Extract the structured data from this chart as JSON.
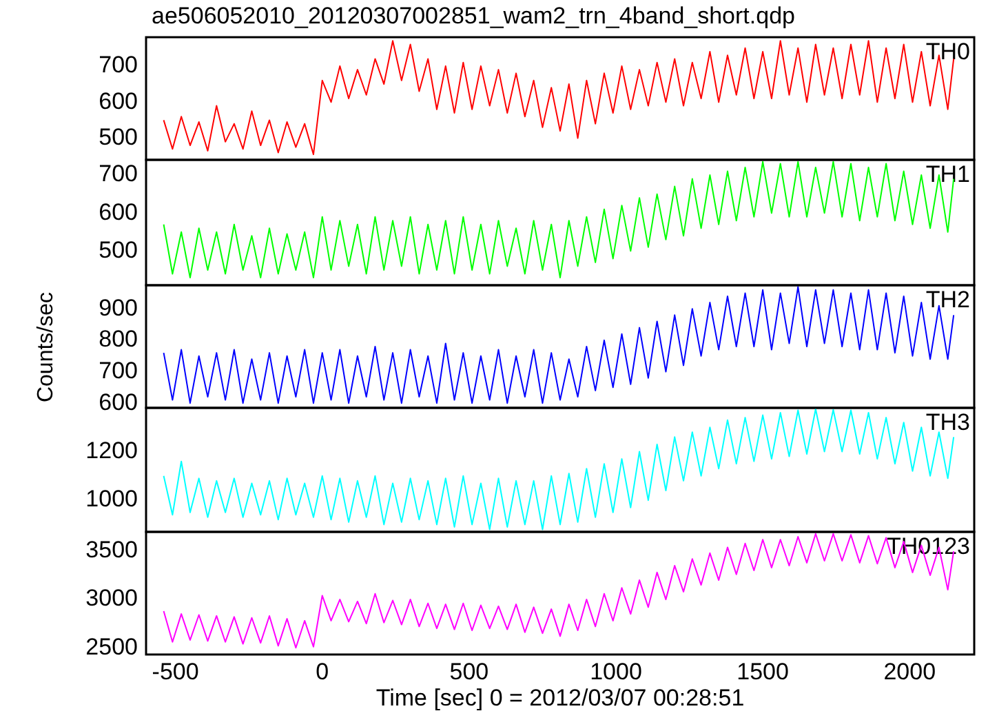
{
  "chart_data": [
    {
      "type": "line",
      "title": "ae506052010_20120307002851_wam2_trn_4band_short.qdp",
      "x": [
        -540,
        -510,
        -480,
        -450,
        -420,
        -390,
        -360,
        -330,
        -300,
        -270,
        -240,
        -210,
        -180,
        -150,
        -120,
        -90,
        -60,
        -30,
        0,
        30,
        60,
        90,
        120,
        150,
        180,
        210,
        240,
        270,
        300,
        330,
        360,
        390,
        420,
        450,
        480,
        510,
        540,
        570,
        600,
        630,
        660,
        690,
        720,
        750,
        780,
        810,
        840,
        870,
        900,
        930,
        960,
        990,
        1020,
        1050,
        1080,
        1110,
        1140,
        1170,
        1200,
        1230,
        1260,
        1290,
        1320,
        1350,
        1380,
        1410,
        1440,
        1470,
        1500,
        1530,
        1560,
        1590,
        1620,
        1650,
        1680,
        1710,
        1740,
        1770,
        1800,
        1830,
        1860,
        1890,
        1920,
        1950,
        1980,
        2010,
        2040,
        2070,
        2100,
        2130,
        2150
      ],
      "xlim": [
        -600,
        2220
      ],
      "xticks": [
        -500,
        0,
        500,
        1000,
        1500,
        2000
      ],
      "ylim": [
        440,
        780
      ],
      "yticks": [
        500,
        600,
        700
      ],
      "tick_labels": "y",
      "series": [
        {
          "name": "TH0",
          "color": "#ff0000",
          "values": [
            550,
            470,
            560,
            480,
            545,
            465,
            590,
            490,
            540,
            470,
            575,
            480,
            550,
            460,
            545,
            475,
            540,
            455,
            660,
            600,
            700,
            610,
            690,
            620,
            720,
            650,
            770,
            660,
            760,
            630,
            720,
            580,
            700,
            570,
            710,
            580,
            700,
            590,
            690,
            570,
            680,
            560,
            660,
            530,
            640,
            520,
            650,
            500,
            660,
            540,
            680,
            570,
            700,
            580,
            690,
            590,
            710,
            600,
            720,
            590,
            710,
            610,
            740,
            600,
            730,
            620,
            750,
            610,
            740,
            610,
            770,
            620,
            750,
            600,
            760,
            620,
            750,
            610,
            760,
            620,
            770,
            600,
            750,
            610,
            760,
            600,
            740,
            590,
            730,
            580,
            720
          ]
        }
      ]
    },
    {
      "type": "line",
      "x": [
        -540,
        -510,
        -480,
        -450,
        -420,
        -390,
        -360,
        -330,
        -300,
        -270,
        -240,
        -210,
        -180,
        -150,
        -120,
        -90,
        -60,
        -30,
        0,
        30,
        60,
        90,
        120,
        150,
        180,
        210,
        240,
        270,
        300,
        330,
        360,
        390,
        420,
        450,
        480,
        510,
        540,
        570,
        600,
        630,
        660,
        690,
        720,
        750,
        780,
        810,
        840,
        870,
        900,
        930,
        960,
        990,
        1020,
        1050,
        1080,
        1110,
        1140,
        1170,
        1200,
        1230,
        1260,
        1290,
        1320,
        1350,
        1380,
        1410,
        1440,
        1470,
        1500,
        1530,
        1560,
        1590,
        1620,
        1650,
        1680,
        1710,
        1740,
        1770,
        1800,
        1830,
        1860,
        1890,
        1920,
        1950,
        1980,
        2010,
        2040,
        2070,
        2100,
        2130,
        2150
      ],
      "xlim": [
        -600,
        2220
      ],
      "xticks": [
        -500,
        0,
        500,
        1000,
        1500,
        2000
      ],
      "ylim": [
        410,
        740
      ],
      "yticks": [
        500,
        600,
        700
      ],
      "tick_labels": "y",
      "series": [
        {
          "name": "TH1",
          "color": "#00ff00",
          "values": [
            570,
            440,
            550,
            430,
            560,
            450,
            550,
            440,
            570,
            450,
            540,
            430,
            560,
            440,
            545,
            450,
            550,
            430,
            590,
            450,
            580,
            460,
            570,
            440,
            590,
            450,
            580,
            460,
            590,
            440,
            570,
            450,
            580,
            440,
            590,
            450,
            570,
            440,
            580,
            460,
            560,
            440,
            580,
            450,
            570,
            430,
            580,
            460,
            590,
            470,
            610,
            480,
            620,
            500,
            640,
            510,
            650,
            530,
            670,
            540,
            690,
            560,
            700,
            570,
            710,
            580,
            720,
            590,
            735,
            600,
            730,
            590,
            735,
            590,
            720,
            600,
            735,
            590,
            730,
            580,
            720,
            590,
            730,
            580,
            710,
            570,
            700,
            560,
            700,
            550,
            690
          ]
        }
      ]
    },
    {
      "type": "line",
      "ylabel": "Counts/sec",
      "x": [
        -540,
        -510,
        -480,
        -450,
        -420,
        -390,
        -360,
        -330,
        -300,
        -270,
        -240,
        -210,
        -180,
        -150,
        -120,
        -90,
        -60,
        -30,
        0,
        30,
        60,
        90,
        120,
        150,
        180,
        210,
        240,
        270,
        300,
        330,
        360,
        390,
        420,
        450,
        480,
        510,
        540,
        570,
        600,
        630,
        660,
        690,
        720,
        750,
        780,
        810,
        840,
        870,
        900,
        930,
        960,
        990,
        1020,
        1050,
        1080,
        1110,
        1140,
        1170,
        1200,
        1230,
        1260,
        1290,
        1320,
        1350,
        1380,
        1410,
        1440,
        1470,
        1500,
        1530,
        1560,
        1590,
        1620,
        1650,
        1680,
        1710,
        1740,
        1770,
        1800,
        1830,
        1860,
        1890,
        1920,
        1950,
        1980,
        2010,
        2040,
        2070,
        2100,
        2130,
        2150
      ],
      "xlim": [
        -600,
        2220
      ],
      "xticks": [
        -500,
        0,
        500,
        1000,
        1500,
        2000
      ],
      "ylim": [
        585,
        975
      ],
      "yticks": [
        600,
        700,
        800,
        900
      ],
      "tick_labels": "y",
      "series": [
        {
          "name": "TH2",
          "color": "#0000ff",
          "values": [
            760,
            610,
            770,
            600,
            750,
            620,
            760,
            610,
            770,
            600,
            740,
            610,
            760,
            600,
            750,
            620,
            770,
            600,
            760,
            610,
            770,
            600,
            750,
            620,
            780,
            610,
            760,
            600,
            770,
            620,
            750,
            600,
            790,
            610,
            760,
            600,
            750,
            610,
            770,
            600,
            750,
            620,
            770,
            600,
            760,
            610,
            740,
            620,
            780,
            640,
            800,
            650,
            820,
            660,
            840,
            680,
            860,
            700,
            880,
            720,
            900,
            750,
            920,
            770,
            940,
            780,
            950,
            780,
            960,
            770,
            950,
            790,
            970,
            780,
            960,
            790,
            960,
            780,
            950,
            770,
            960,
            770,
            950,
            760,
            940,
            750,
            920,
            740,
            910,
            740,
            880
          ]
        }
      ]
    },
    {
      "type": "line",
      "x": [
        -540,
        -510,
        -480,
        -450,
        -420,
        -390,
        -360,
        -330,
        -300,
        -270,
        -240,
        -210,
        -180,
        -150,
        -120,
        -90,
        -60,
        -30,
        0,
        30,
        60,
        90,
        120,
        150,
        180,
        210,
        240,
        270,
        300,
        330,
        360,
        390,
        420,
        450,
        480,
        510,
        540,
        570,
        600,
        630,
        660,
        690,
        720,
        750,
        780,
        810,
        840,
        870,
        900,
        930,
        960,
        990,
        1020,
        1050,
        1080,
        1110,
        1140,
        1170,
        1200,
        1230,
        1260,
        1290,
        1320,
        1350,
        1380,
        1410,
        1440,
        1470,
        1500,
        1530,
        1560,
        1590,
        1620,
        1650,
        1680,
        1710,
        1740,
        1770,
        1800,
        1830,
        1860,
        1890,
        1920,
        1950,
        1980,
        2010,
        2040,
        2070,
        2100,
        2130,
        2150
      ],
      "xlim": [
        -600,
        2220
      ],
      "xticks": [
        -500,
        0,
        500,
        1000,
        1500,
        2000
      ],
      "ylim": [
        870,
        1380
      ],
      "yticks": [
        1000,
        1200
      ],
      "tick_labels": "y",
      "series": [
        {
          "name": "TH3",
          "color": "#00ffff",
          "values": [
            1100,
            940,
            1160,
            950,
            1090,
            930,
            1080,
            950,
            1090,
            930,
            1070,
            940,
            1080,
            920,
            1090,
            940,
            1070,
            930,
            1100,
            920,
            1090,
            910,
            1080,
            930,
            1100,
            900,
            1070,
            910,
            1090,
            920,
            1080,
            900,
            1090,
            890,
            1100,
            900,
            1070,
            880,
            1090,
            890,
            1080,
            900,
            1080,
            880,
            1100,
            900,
            1110,
            910,
            1130,
            930,
            1150,
            950,
            1170,
            970,
            1200,
            1000,
            1230,
            1040,
            1260,
            1080,
            1280,
            1100,
            1300,
            1130,
            1330,
            1150,
            1340,
            1160,
            1350,
            1170,
            1360,
            1180,
            1370,
            1190,
            1375,
            1200,
            1372,
            1200,
            1370,
            1190,
            1360,
            1170,
            1340,
            1150,
            1320,
            1120,
            1300,
            1100,
            1280,
            1090,
            1260
          ]
        }
      ]
    },
    {
      "type": "line",
      "xlabel": "Time [sec] 0 = 2012/03/07 00:28:51",
      "x": [
        -540,
        -510,
        -480,
        -450,
        -420,
        -390,
        -360,
        -330,
        -300,
        -270,
        -240,
        -210,
        -180,
        -150,
        -120,
        -90,
        -60,
        -30,
        0,
        30,
        60,
        90,
        120,
        150,
        180,
        210,
        240,
        270,
        300,
        330,
        360,
        390,
        420,
        450,
        480,
        510,
        540,
        570,
        600,
        630,
        660,
        690,
        720,
        750,
        780,
        810,
        840,
        870,
        900,
        930,
        960,
        990,
        1020,
        1050,
        1080,
        1110,
        1140,
        1170,
        1200,
        1230,
        1260,
        1290,
        1320,
        1350,
        1380,
        1410,
        1440,
        1470,
        1500,
        1530,
        1560,
        1590,
        1620,
        1650,
        1680,
        1710,
        1740,
        1770,
        1800,
        1830,
        1860,
        1890,
        1920,
        1950,
        1980,
        2010,
        2040,
        2070,
        2100,
        2130,
        2150
      ],
      "xlim": [
        -600,
        2220
      ],
      "xticks": [
        -500,
        0,
        500,
        1000,
        1500,
        2000
      ],
      "ylim": [
        2430,
        3700
      ],
      "yticks": [
        2500,
        3000,
        3500
      ],
      "series": [
        {
          "name": "TH0123",
          "color": "#ff00ff",
          "values": [
            2880,
            2560,
            2850,
            2580,
            2840,
            2570,
            2830,
            2560,
            2820,
            2540,
            2810,
            2550,
            2830,
            2520,
            2800,
            2500,
            2780,
            2510,
            3040,
            2780,
            3000,
            2770,
            2980,
            2750,
            3060,
            2760,
            2990,
            2740,
            3000,
            2720,
            2960,
            2700,
            2950,
            2690,
            2960,
            2680,
            2940,
            2700,
            2930,
            2690,
            2950,
            2660,
            2920,
            2650,
            2900,
            2620,
            2950,
            2680,
            3000,
            2720,
            3060,
            2780,
            3120,
            2850,
            3200,
            2920,
            3280,
            3000,
            3350,
            3080,
            3420,
            3150,
            3480,
            3200,
            3540,
            3260,
            3580,
            3300,
            3620,
            3330,
            3620,
            3350,
            3650,
            3380,
            3680,
            3400,
            3680,
            3400,
            3670,
            3380,
            3660,
            3370,
            3640,
            3330,
            3600,
            3280,
            3560,
            3250,
            3540,
            3100,
            3500
          ]
        }
      ]
    }
  ]
}
